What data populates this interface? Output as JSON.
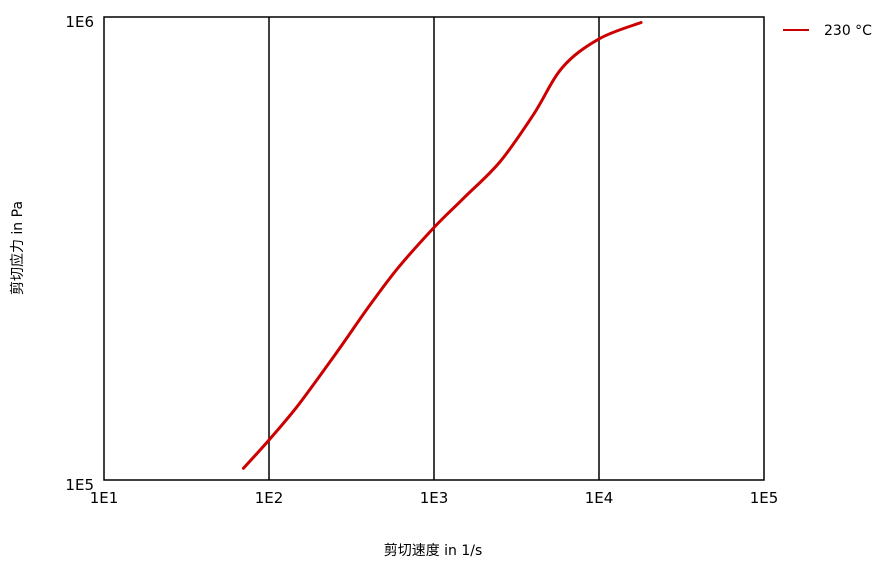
{
  "chart_data": {
    "type": "line",
    "title": "",
    "xlabel": "剪切速度 in 1/s",
    "ylabel": "剪切应力 in Pa",
    "xscale": "log",
    "yscale": "log",
    "xlim": [
      10,
      100000
    ],
    "ylim": [
      100000,
      1000000
    ],
    "x_ticks": [
      {
        "value": 10,
        "label": "1E1"
      },
      {
        "value": 100,
        "label": "1E2"
      },
      {
        "value": 1000,
        "label": "1E3"
      },
      {
        "value": 10000,
        "label": "1E4"
      },
      {
        "value": 100000,
        "label": "1E5"
      }
    ],
    "y_ticks": [
      {
        "value": 100000,
        "label": "1E5"
      },
      {
        "value": 1000000,
        "label": "1E6"
      }
    ],
    "grid": {
      "vertical": true,
      "horizontal": false
    },
    "legend": {
      "position": "right-top"
    },
    "series": [
      {
        "name": "230 °C",
        "color": "#cc0000",
        "x": [
          70,
          100,
          150,
          250,
          400,
          600,
          1000,
          1500,
          2500,
          4000,
          6000,
          10000,
          18000
        ],
        "y": [
          106000,
          122000,
          145000,
          186000,
          236000,
          286000,
          351000,
          405000,
          486000,
          615000,
          778000,
          897000,
          973000
        ]
      }
    ]
  }
}
